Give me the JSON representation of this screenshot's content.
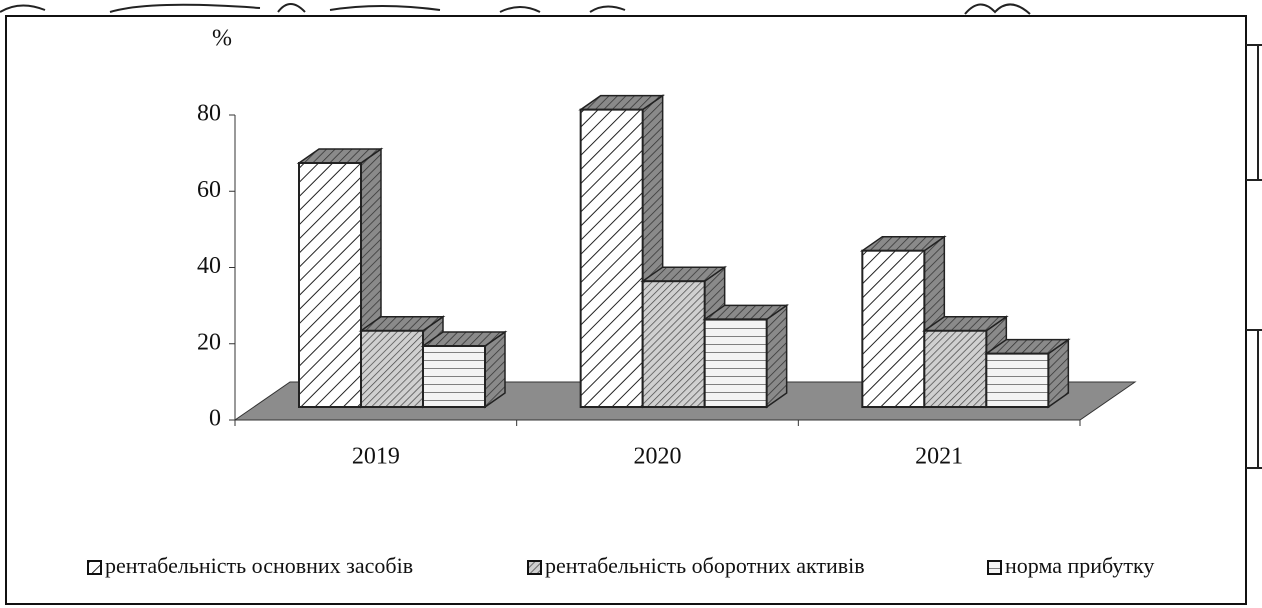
{
  "chart_data": {
    "type": "bar3d",
    "y_label": "%",
    "categories": [
      "2019",
      "2020",
      "2021"
    ],
    "series": [
      {
        "name": "рентабельність основних засобів",
        "color": "#ffffff",
        "values": [
          64,
          78,
          41
        ]
      },
      {
        "name": "рентабельність оборотних активів",
        "color": "#bdbdbd",
        "values": [
          20,
          33,
          20
        ]
      },
      {
        "name": "норма прибутку",
        "color": "#f4f4f4",
        "values": [
          16,
          23,
          14
        ]
      }
    ],
    "ylim": [
      0,
      80
    ],
    "yticks": [
      0,
      20,
      40,
      60,
      80
    ],
    "grid": false,
    "legend": "bottom"
  }
}
